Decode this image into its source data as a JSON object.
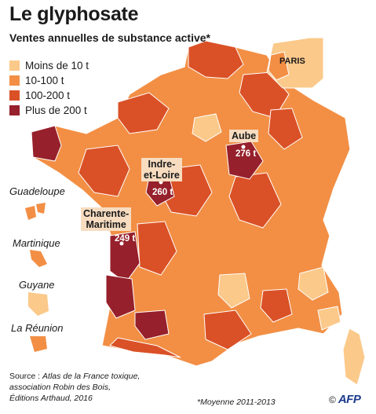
{
  "title": "Le glyphosate",
  "subtitle": "Ventes annuelles de substance active*",
  "legend": [
    {
      "label": "Moins de 10 t",
      "color": "#fbc98a"
    },
    {
      "label": "10-100 t",
      "color": "#f28f45"
    },
    {
      "label": "100-200 t",
      "color": "#da5127"
    },
    {
      "label": "Plus de 200 t",
      "color": "#96202b"
    }
  ],
  "overseas": {
    "guadeloupe": "Guadeloupe",
    "martinique": "Martinique",
    "guyane": "Guyane",
    "reunion": "La Réunion"
  },
  "callouts": {
    "aube": {
      "name": "Aube",
      "value": "276 t"
    },
    "indre_et_loire": {
      "name_line1": "Indre-",
      "name_line2": "et-Loire",
      "value": "260 t"
    },
    "charente_maritime": {
      "name_line1": "Charente-",
      "name_line2": "Maritime",
      "value": "249 t"
    },
    "paris": "PARIS"
  },
  "source": {
    "prefix": "Source : ",
    "line1_italic": "Atlas de la France toxique,",
    "line2": "association Robin des Bois,",
    "line3": "Éditions Arthaud, 2016"
  },
  "footnote": "*Moyenne 2011-2013",
  "credit": {
    "copyright": "©",
    "agency": "AFP"
  }
}
